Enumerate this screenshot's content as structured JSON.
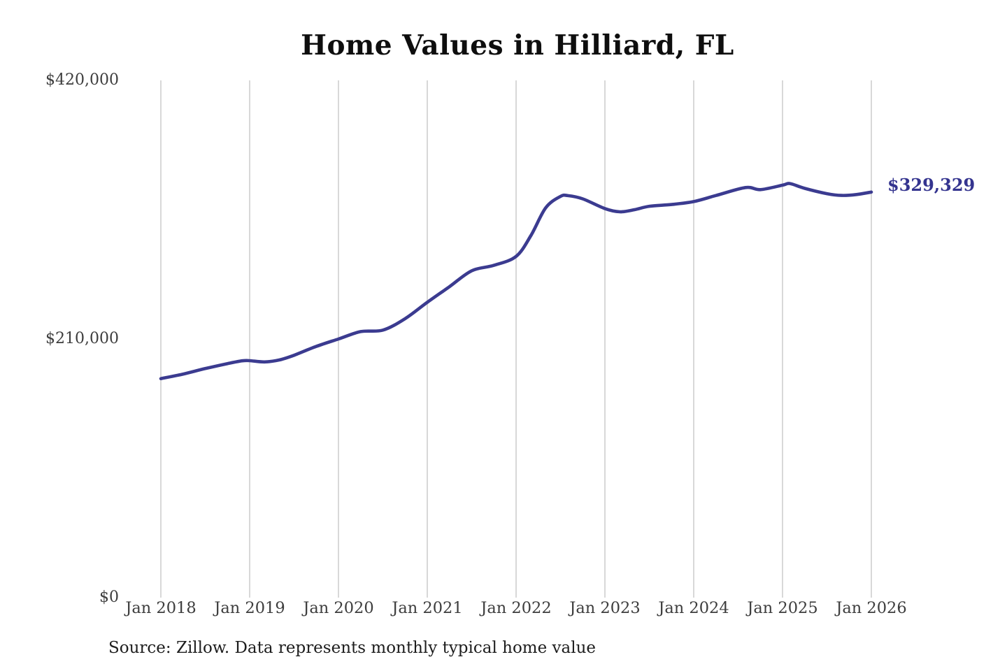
{
  "page": {
    "background_color": "#ffffff"
  },
  "title": "Home Values in Hilliard, FL",
  "source_note": "Source: Zillow. Data represents monthly typical home value",
  "chart_data": {
    "type": "line",
    "title": "Home Values in Hilliard, FL",
    "series_name": "Monthly typical home value",
    "line_color": "#3b3b90",
    "gridline_color": "#cccccc",
    "tick_label_color": "#3d3d3d",
    "grid": "vertical-only",
    "legend": "none",
    "ylim": [
      0,
      420000
    ],
    "y_ticks": [
      {
        "label": "$0",
        "value": 0
      },
      {
        "label": "$210,000",
        "value": 210000
      },
      {
        "label": "$420,000",
        "value": 420000
      }
    ],
    "x_ticks": [
      {
        "label": "Jan 2018",
        "month": "2018-01"
      },
      {
        "label": "Jan 2019",
        "month": "2019-01"
      },
      {
        "label": "Jan 2020",
        "month": "2020-01"
      },
      {
        "label": "Jan 2021",
        "month": "2021-01"
      },
      {
        "label": "Jan 2022",
        "month": "2022-01"
      },
      {
        "label": "Jan 2023",
        "month": "2023-01"
      },
      {
        "label": "Jan 2024",
        "month": "2024-01"
      },
      {
        "label": "Jan 2025",
        "month": "2025-01"
      },
      {
        "label": "Jan 2026",
        "month": "2026-01"
      }
    ],
    "points": [
      {
        "month": "2018-01",
        "value": 177800
      },
      {
        "month": "2018-04",
        "value": 181500
      },
      {
        "month": "2018-07",
        "value": 186000
      },
      {
        "month": "2018-10",
        "value": 190000
      },
      {
        "month": "2018-12",
        "value": 192300
      },
      {
        "month": "2019-01",
        "value": 192400
      },
      {
        "month": "2019-03",
        "value": 191400
      },
      {
        "month": "2019-05",
        "value": 193000
      },
      {
        "month": "2019-07",
        "value": 196800
      },
      {
        "month": "2019-10",
        "value": 204000
      },
      {
        "month": "2020-01",
        "value": 210000
      },
      {
        "month": "2020-04",
        "value": 216000
      },
      {
        "month": "2020-07",
        "value": 217200
      },
      {
        "month": "2020-10",
        "value": 226500
      },
      {
        "month": "2021-01",
        "value": 239800
      },
      {
        "month": "2021-04",
        "value": 252500
      },
      {
        "month": "2021-07",
        "value": 265400
      },
      {
        "month": "2021-10",
        "value": 269800
      },
      {
        "month": "2022-01",
        "value": 277100
      },
      {
        "month": "2022-03",
        "value": 294000
      },
      {
        "month": "2022-05",
        "value": 316500
      },
      {
        "month": "2022-07",
        "value": 325800
      },
      {
        "month": "2022-08",
        "value": 326400
      },
      {
        "month": "2022-10",
        "value": 323800
      },
      {
        "month": "2023-01",
        "value": 315900
      },
      {
        "month": "2023-03",
        "value": 313300
      },
      {
        "month": "2023-05",
        "value": 315000
      },
      {
        "month": "2023-07",
        "value": 317800
      },
      {
        "month": "2023-10",
        "value": 319200
      },
      {
        "month": "2024-01",
        "value": 321600
      },
      {
        "month": "2024-04",
        "value": 326500
      },
      {
        "month": "2024-08",
        "value": 333000
      },
      {
        "month": "2024-10",
        "value": 331300
      },
      {
        "month": "2025-01",
        "value": 334900
      },
      {
        "month": "2025-02",
        "value": 336200
      },
      {
        "month": "2025-04",
        "value": 332300
      },
      {
        "month": "2025-07",
        "value": 328000
      },
      {
        "month": "2025-09",
        "value": 326600
      },
      {
        "month": "2025-11",
        "value": 327300
      },
      {
        "month": "2026-01",
        "value": 329329
      }
    ],
    "last_value": 329329,
    "last_point_label": "$329,329",
    "last_point_label_color": "#34348f"
  }
}
